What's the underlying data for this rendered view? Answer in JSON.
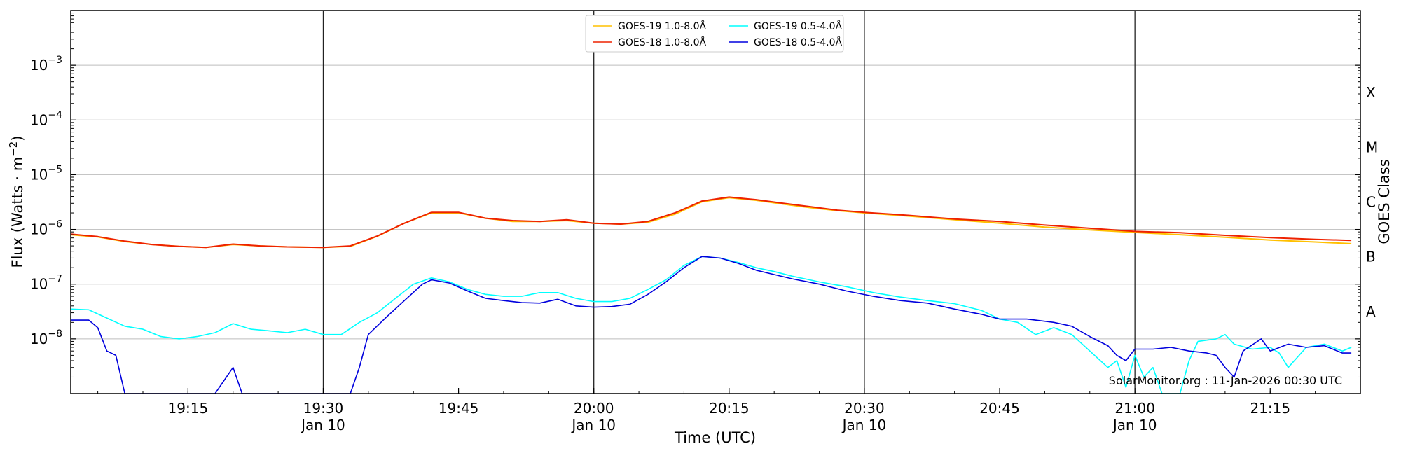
{
  "chart_data": {
    "type": "line",
    "xlabel": "Time (UTC)",
    "ylabel": "Flux (Watts · m",
    "ylabel_exp": "−2",
    "ylabel_close": ")",
    "right_label": "GOES Class",
    "credit": "SolarMonitor.org : 11-Jan-2026 00:30 UTC",
    "yscale": "log",
    "xlim": [
      "19:02",
      "21:25"
    ],
    "ylim": [
      1e-09,
      0.01
    ],
    "grid": "horizontal at decades",
    "legend_position": "top-center",
    "x_ticks": [
      {
        "t": "19:15",
        "line1": "19:15",
        "line2": ""
      },
      {
        "t": "19:30",
        "line1": "19:30",
        "line2": "Jan 10"
      },
      {
        "t": "19:45",
        "line1": "19:45",
        "line2": ""
      },
      {
        "t": "20:00",
        "line1": "20:00",
        "line2": "Jan 10"
      },
      {
        "t": "20:15",
        "line1": "20:15",
        "line2": ""
      },
      {
        "t": "20:30",
        "line1": "20:30",
        "line2": "Jan 10"
      },
      {
        "t": "20:45",
        "line1": "20:45",
        "line2": ""
      },
      {
        "t": "21:00",
        "line1": "21:00",
        "line2": "Jan 10"
      },
      {
        "t": "21:15",
        "line1": "21:15",
        "line2": ""
      }
    ],
    "vertical_lines": [
      "19:30",
      "20:00",
      "20:30",
      "21:00"
    ],
    "y_ticks": [
      {
        "exp": -8,
        "label": "10",
        "sup": "−8"
      },
      {
        "exp": -7,
        "label": "10",
        "sup": "−7"
      },
      {
        "exp": -6,
        "label": "10",
        "sup": "−6"
      },
      {
        "exp": -5,
        "label": "10",
        "sup": "−5"
      },
      {
        "exp": -4,
        "label": "10",
        "sup": "−4"
      },
      {
        "exp": -3,
        "label": "10",
        "sup": "−3"
      }
    ],
    "goes_classes": [
      {
        "label": "A",
        "exp": -7.5
      },
      {
        "label": "B",
        "exp": -6.5
      },
      {
        "label": "C",
        "exp": -5.5
      },
      {
        "label": "M",
        "exp": -4.5
      },
      {
        "label": "X",
        "exp": -3.5
      }
    ],
    "series": [
      {
        "name": "GOES-19 1.0-8.0Å",
        "color": "#ffc000",
        "points": [
          [
            "19:02",
            8e-07
          ],
          [
            "19:05",
            7.3e-07
          ],
          [
            "19:08",
            6e-07
          ],
          [
            "19:11",
            5.3e-07
          ],
          [
            "19:14",
            4.9e-07
          ],
          [
            "19:17",
            4.7e-07
          ],
          [
            "19:20",
            5.3e-07
          ],
          [
            "19:23",
            5e-07
          ],
          [
            "19:26",
            4.8e-07
          ],
          [
            "19:30",
            4.7e-07
          ],
          [
            "19:33",
            4.9e-07
          ],
          [
            "19:36",
            7.5e-07
          ],
          [
            "19:39",
            1.3e-06
          ],
          [
            "19:42",
            2e-06
          ],
          [
            "19:45",
            2e-06
          ],
          [
            "19:48",
            1.6e-06
          ],
          [
            "19:51",
            1.4e-06
          ],
          [
            "19:54",
            1.4e-06
          ],
          [
            "19:57",
            1.45e-06
          ],
          [
            "20:00",
            1.3e-06
          ],
          [
            "20:03",
            1.25e-06
          ],
          [
            "20:06",
            1.35e-06
          ],
          [
            "20:09",
            1.9e-06
          ],
          [
            "20:12",
            3.2e-06
          ],
          [
            "20:15",
            3.8e-06
          ],
          [
            "20:18",
            3.4e-06
          ],
          [
            "20:21",
            2.9e-06
          ],
          [
            "20:24",
            2.5e-06
          ],
          [
            "20:27",
            2.2e-06
          ],
          [
            "20:30",
            2e-06
          ],
          [
            "20:35",
            1.75e-06
          ],
          [
            "20:40",
            1.5e-06
          ],
          [
            "20:45",
            1.3e-06
          ],
          [
            "20:50",
            1.1e-06
          ],
          [
            "20:55",
            9.8e-07
          ],
          [
            "21:00",
            8.8e-07
          ],
          [
            "21:05",
            8e-07
          ],
          [
            "21:10",
            7.2e-07
          ],
          [
            "21:15",
            6.4e-07
          ],
          [
            "21:20",
            5.9e-07
          ],
          [
            "21:24",
            5.5e-07
          ]
        ]
      },
      {
        "name": "GOES-18 1.0-8.0Å",
        "color": "#ee2200",
        "points": [
          [
            "19:02",
            8.2e-07
          ],
          [
            "19:05",
            7.4e-07
          ],
          [
            "19:08",
            6.1e-07
          ],
          [
            "19:11",
            5.3e-07
          ],
          [
            "19:14",
            4.9e-07
          ],
          [
            "19:17",
            4.7e-07
          ],
          [
            "19:20",
            5.4e-07
          ],
          [
            "19:23",
            5e-07
          ],
          [
            "19:26",
            4.8e-07
          ],
          [
            "19:30",
            4.7e-07
          ],
          [
            "19:33",
            5e-07
          ],
          [
            "19:36",
            7.6e-07
          ],
          [
            "19:39",
            1.3e-06
          ],
          [
            "19:42",
            2.05e-06
          ],
          [
            "19:45",
            2.05e-06
          ],
          [
            "19:48",
            1.6e-06
          ],
          [
            "19:51",
            1.45e-06
          ],
          [
            "19:54",
            1.4e-06
          ],
          [
            "19:57",
            1.5e-06
          ],
          [
            "20:00",
            1.3e-06
          ],
          [
            "20:03",
            1.25e-06
          ],
          [
            "20:06",
            1.4e-06
          ],
          [
            "20:09",
            2e-06
          ],
          [
            "20:12",
            3.3e-06
          ],
          [
            "20:15",
            3.9e-06
          ],
          [
            "20:18",
            3.5e-06
          ],
          [
            "20:21",
            3e-06
          ],
          [
            "20:24",
            2.6e-06
          ],
          [
            "20:27",
            2.25e-06
          ],
          [
            "20:30",
            2.05e-06
          ],
          [
            "20:35",
            1.8e-06
          ],
          [
            "20:40",
            1.55e-06
          ],
          [
            "20:45",
            1.4e-06
          ],
          [
            "20:50",
            1.2e-06
          ],
          [
            "20:55",
            1.05e-06
          ],
          [
            "21:00",
            9.2e-07
          ],
          [
            "21:05",
            8.7e-07
          ],
          [
            "21:10",
            7.8e-07
          ],
          [
            "21:15",
            7.1e-07
          ],
          [
            "21:20",
            6.6e-07
          ],
          [
            "21:24",
            6.3e-07
          ]
        ]
      },
      {
        "name": "GOES-19 0.5-4.0Å",
        "color": "#00ffff",
        "points": [
          [
            "19:02",
            3.5e-08
          ],
          [
            "19:04",
            3.4e-08
          ],
          [
            "19:06",
            2.4e-08
          ],
          [
            "19:08",
            1.7e-08
          ],
          [
            "19:10",
            1.5e-08
          ],
          [
            "19:12",
            1.1e-08
          ],
          [
            "19:14",
            1e-08
          ],
          [
            "19:16",
            1.1e-08
          ],
          [
            "19:18",
            1.3e-08
          ],
          [
            "19:20",
            1.9e-08
          ],
          [
            "19:22",
            1.5e-08
          ],
          [
            "19:24",
            1.4e-08
          ],
          [
            "19:26",
            1.3e-08
          ],
          [
            "19:28",
            1.5e-08
          ],
          [
            "19:30",
            1.2e-08
          ],
          [
            "19:32",
            1.2e-08
          ],
          [
            "19:34",
            2e-08
          ],
          [
            "19:36",
            3e-08
          ],
          [
            "19:38",
            5.5e-08
          ],
          [
            "19:40",
            1e-07
          ],
          [
            "19:42",
            1.3e-07
          ],
          [
            "19:44",
            1.1e-07
          ],
          [
            "19:46",
            8e-08
          ],
          [
            "19:48",
            6.5e-08
          ],
          [
            "19:50",
            6e-08
          ],
          [
            "19:52",
            6e-08
          ],
          [
            "19:54",
            7e-08
          ],
          [
            "19:56",
            7e-08
          ],
          [
            "19:58",
            5.5e-08
          ],
          [
            "20:00",
            4.8e-08
          ],
          [
            "20:02",
            4.8e-08
          ],
          [
            "20:04",
            5.5e-08
          ],
          [
            "20:06",
            8e-08
          ],
          [
            "20:08",
            1.2e-07
          ],
          [
            "20:10",
            2.2e-07
          ],
          [
            "20:12",
            3.2e-07
          ],
          [
            "20:14",
            3e-07
          ],
          [
            "20:16",
            2.5e-07
          ],
          [
            "20:18",
            2e-07
          ],
          [
            "20:20",
            1.7e-07
          ],
          [
            "20:22",
            1.4e-07
          ],
          [
            "20:25",
            1.1e-07
          ],
          [
            "20:28",
            9e-08
          ],
          [
            "20:31",
            7e-08
          ],
          [
            "20:34",
            5.8e-08
          ],
          [
            "20:37",
            5e-08
          ],
          [
            "20:40",
            4.4e-08
          ],
          [
            "20:43",
            3.3e-08
          ],
          [
            "20:45",
            2.3e-08
          ],
          [
            "20:47",
            2e-08
          ],
          [
            "20:49",
            1.2e-08
          ],
          [
            "20:51",
            1.6e-08
          ],
          [
            "20:53",
            1.2e-08
          ],
          [
            "20:55",
            6e-09
          ],
          [
            "20:57",
            3e-09
          ],
          [
            "20:58",
            4e-09
          ],
          [
            "20:59",
            1.3e-09
          ],
          [
            "21:00",
            5e-09
          ],
          [
            "21:01",
            2e-09
          ],
          [
            "21:02",
            3e-09
          ],
          [
            "21:03",
            1e-09
          ],
          [
            "21:05",
            1e-09
          ],
          [
            "21:06",
            4e-09
          ],
          [
            "21:07",
            9e-09
          ],
          [
            "21:09",
            1e-08
          ],
          [
            "21:10",
            1.2e-08
          ],
          [
            "21:11",
            8e-09
          ],
          [
            "21:13",
            6.5e-09
          ],
          [
            "21:15",
            7e-09
          ],
          [
            "21:16",
            5.5e-09
          ],
          [
            "21:17",
            3e-09
          ],
          [
            "21:19",
            7e-09
          ],
          [
            "21:21",
            8e-09
          ],
          [
            "21:23",
            6e-09
          ],
          [
            "21:24",
            7e-09
          ]
        ]
      },
      {
        "name": "GOES-18 0.5-4.0Å",
        "color": "#0000dd",
        "points": [
          [
            "19:02",
            2.2e-08
          ],
          [
            "19:04",
            2.2e-08
          ],
          [
            "19:05",
            1.6e-08
          ],
          [
            "19:06",
            6e-09
          ],
          [
            "19:07",
            5e-09
          ],
          [
            "19:08",
            1e-09
          ],
          [
            "19:18",
            1e-09
          ],
          [
            "19:20",
            3e-09
          ],
          [
            "19:21",
            1e-09
          ],
          [
            "19:33",
            1e-09
          ],
          [
            "19:34",
            3e-09
          ],
          [
            "19:35",
            1.2e-08
          ],
          [
            "19:37",
            2.5e-08
          ],
          [
            "19:39",
            5e-08
          ],
          [
            "19:41",
            1e-07
          ],
          [
            "19:42",
            1.2e-07
          ],
          [
            "19:44",
            1.05e-07
          ],
          [
            "19:46",
            7.5e-08
          ],
          [
            "19:48",
            5.5e-08
          ],
          [
            "19:50",
            5e-08
          ],
          [
            "19:52",
            4.6e-08
          ],
          [
            "19:54",
            4.5e-08
          ],
          [
            "19:56",
            5.3e-08
          ],
          [
            "19:58",
            4e-08
          ],
          [
            "20:00",
            3.8e-08
          ],
          [
            "20:02",
            3.9e-08
          ],
          [
            "20:04",
            4.3e-08
          ],
          [
            "20:06",
            6.5e-08
          ],
          [
            "20:08",
            1.1e-07
          ],
          [
            "20:10",
            2e-07
          ],
          [
            "20:12",
            3.2e-07
          ],
          [
            "20:14",
            3e-07
          ],
          [
            "20:16",
            2.4e-07
          ],
          [
            "20:18",
            1.8e-07
          ],
          [
            "20:20",
            1.5e-07
          ],
          [
            "20:22",
            1.25e-07
          ],
          [
            "20:25",
            1e-07
          ],
          [
            "20:28",
            7.5e-08
          ],
          [
            "20:31",
            6e-08
          ],
          [
            "20:34",
            5e-08
          ],
          [
            "20:37",
            4.5e-08
          ],
          [
            "20:40",
            3.5e-08
          ],
          [
            "20:43",
            2.8e-08
          ],
          [
            "20:45",
            2.3e-08
          ],
          [
            "20:48",
            2.3e-08
          ],
          [
            "20:51",
            2e-08
          ],
          [
            "20:53",
            1.7e-08
          ],
          [
            "20:55",
            1.1e-08
          ],
          [
            "20:57",
            7.5e-09
          ],
          [
            "20:58",
            5e-09
          ],
          [
            "20:59",
            4e-09
          ],
          [
            "21:00",
            6.5e-09
          ],
          [
            "21:02",
            6.5e-09
          ],
          [
            "21:04",
            7e-09
          ],
          [
            "21:06",
            6e-09
          ],
          [
            "21:08",
            5.5e-09
          ],
          [
            "21:09",
            5e-09
          ],
          [
            "21:10",
            3e-09
          ],
          [
            "21:11",
            2e-09
          ],
          [
            "21:12",
            6e-09
          ],
          [
            "21:14",
            1e-08
          ],
          [
            "21:15",
            6e-09
          ],
          [
            "21:17",
            8e-09
          ],
          [
            "21:19",
            7e-09
          ],
          [
            "21:21",
            7.5e-09
          ],
          [
            "21:23",
            5.5e-09
          ],
          [
            "21:24",
            5.5e-09
          ]
        ]
      }
    ]
  }
}
